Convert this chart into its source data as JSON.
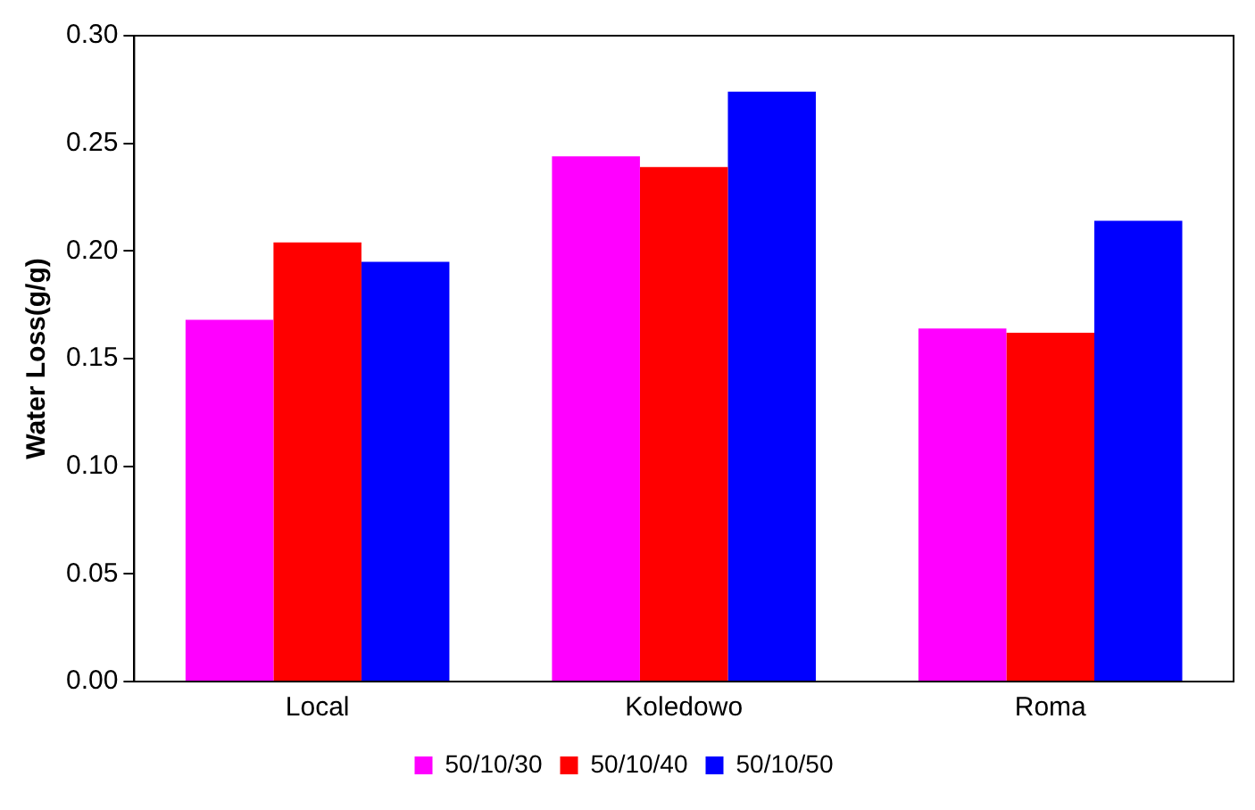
{
  "chart_data": {
    "type": "bar",
    "ylabel": "Water Loss(g/g)",
    "categories": [
      "Local",
      "Koledowo",
      "Roma"
    ],
    "series": [
      {
        "name": "50/10/30",
        "color": "#ff00ff",
        "values": [
          0.168,
          0.244,
          0.164
        ]
      },
      {
        "name": "50/10/40",
        "color": "#ff0000",
        "values": [
          0.204,
          0.239,
          0.162
        ]
      },
      {
        "name": "50/10/50",
        "color": "#0000ff",
        "values": [
          0.195,
          0.274,
          0.214
        ]
      }
    ],
    "ylim": [
      0,
      0.3
    ],
    "yticks": [
      {
        "value": 0,
        "label": "0.00"
      },
      0.05,
      {
        "value": 0.1,
        "label": "0.10"
      },
      0.15,
      {
        "value": 0.2,
        "label": "0.20"
      },
      0.25,
      {
        "value": 0.3,
        "label": "0.30"
      }
    ],
    "grid": false,
    "legend": "bottom"
  }
}
